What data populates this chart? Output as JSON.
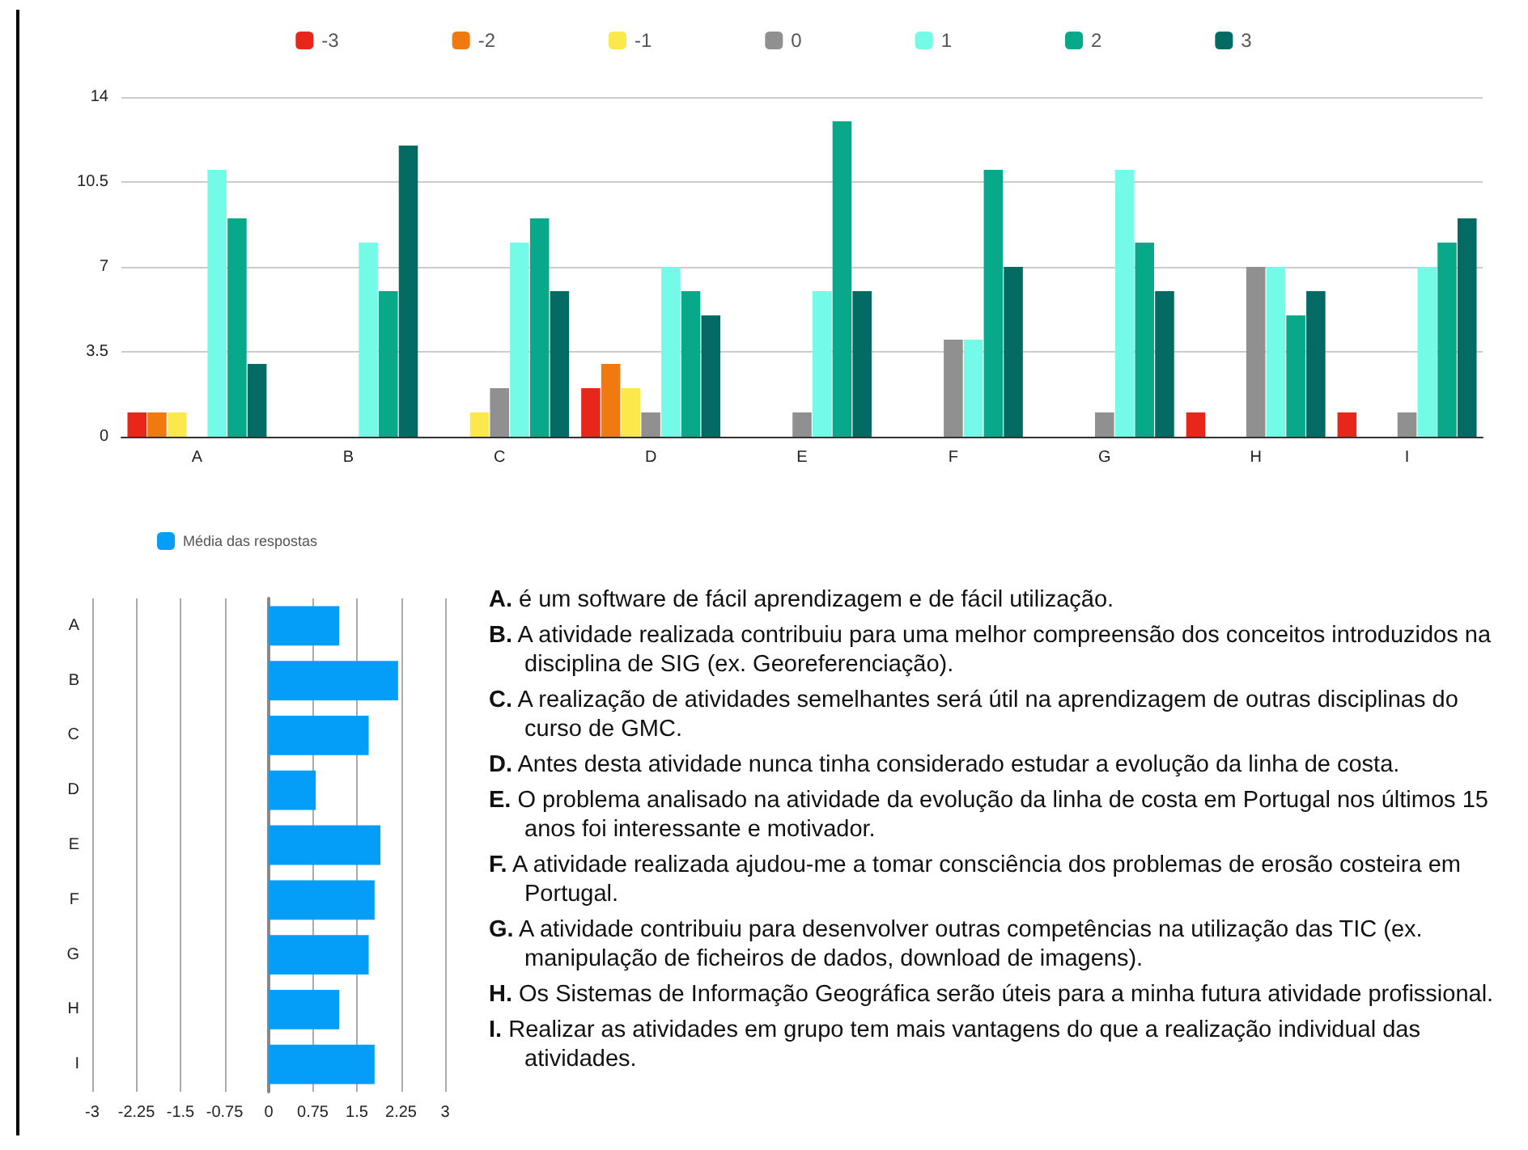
{
  "chart_data": [
    {
      "type": "bar",
      "categories": [
        "A",
        "B",
        "C",
        "D",
        "E",
        "F",
        "G",
        "H",
        "I"
      ],
      "series": [
        {
          "name": "-3",
          "color": "#e8261a",
          "values": [
            1,
            0,
            0,
            2,
            0,
            0,
            0,
            1,
            1
          ]
        },
        {
          "name": "-2",
          "color": "#f07a10",
          "values": [
            1,
            0,
            0,
            3,
            0,
            0,
            0,
            0,
            0
          ]
        },
        {
          "name": "-1",
          "color": "#fbe84a",
          "values": [
            1,
            0,
            1,
            2,
            0,
            0,
            0,
            0,
            0
          ]
        },
        {
          "name": "0",
          "color": "#909090",
          "values": [
            0,
            0,
            2,
            1,
            1,
            4,
            1,
            7,
            1
          ]
        },
        {
          "name": "1",
          "color": "#74fbe8",
          "values": [
            11,
            8,
            8,
            7,
            6,
            4,
            11,
            7,
            7
          ]
        },
        {
          "name": "2",
          "color": "#07a98a",
          "values": [
            9,
            6,
            9,
            6,
            13,
            11,
            8,
            5,
            8
          ]
        },
        {
          "name": "3",
          "color": "#046b64",
          "values": [
            3,
            12,
            6,
            5,
            6,
            7,
            6,
            6,
            9
          ]
        }
      ],
      "ylim": [
        0,
        14
      ],
      "yticks": [
        0,
        3.5,
        7,
        10.5,
        14
      ],
      "grid": "y",
      "legend": "top"
    },
    {
      "type": "bar",
      "orientation": "horizontal",
      "categories": [
        "A",
        "B",
        "C",
        "D",
        "E",
        "F",
        "G",
        "H",
        "I"
      ],
      "series": [
        {
          "name": "Média das respostas",
          "color": "#049df7",
          "values": [
            1.2,
            2.2,
            1.7,
            0.8,
            1.9,
            1.8,
            1.7,
            1.2,
            1.8
          ]
        }
      ],
      "xlim": [
        -3,
        3
      ],
      "xticks": [
        -3,
        -2.25,
        -1.5,
        -0.75,
        0,
        0.75,
        1.5,
        2.25,
        3
      ],
      "grid": "x",
      "legend": "top left",
      "annotations": [
        "A. é um software de fácil aprendizagem e de fácil utilização.",
        "B. A atividade realizada contribuiu para uma melhor compreensão dos conceitos introduzidos na disciplina de SIG (ex. Georeferenciação).",
        "C. A realização de atividades semelhantes será útil na aprendizagem de outras disciplinas do curso de GMC.",
        "D. Antes desta atividade nunca tinha considerado estudar a evolução da linha de costa.",
        "E. O problema analisado na atividade da evolução da linha de costa em Portugal nos últimos 15 anos foi interessante e motivador.",
        "F. A atividade realizada ajudou-me a tomar consciência dos problemas de erosão costeira em Portugal.",
        "G. A atividade contribuiu para desenvolver outras competências na utilização das TIC (ex. manipulação de ficheiros de dados, download de imagens).",
        "H. Os Sistemas de Informação Geográfica serão úteis para a minha futura atividade profissional.",
        "I. Realizar as atividades em grupo tem mais vantagens do que a realização individual das atividades."
      ]
    }
  ]
}
